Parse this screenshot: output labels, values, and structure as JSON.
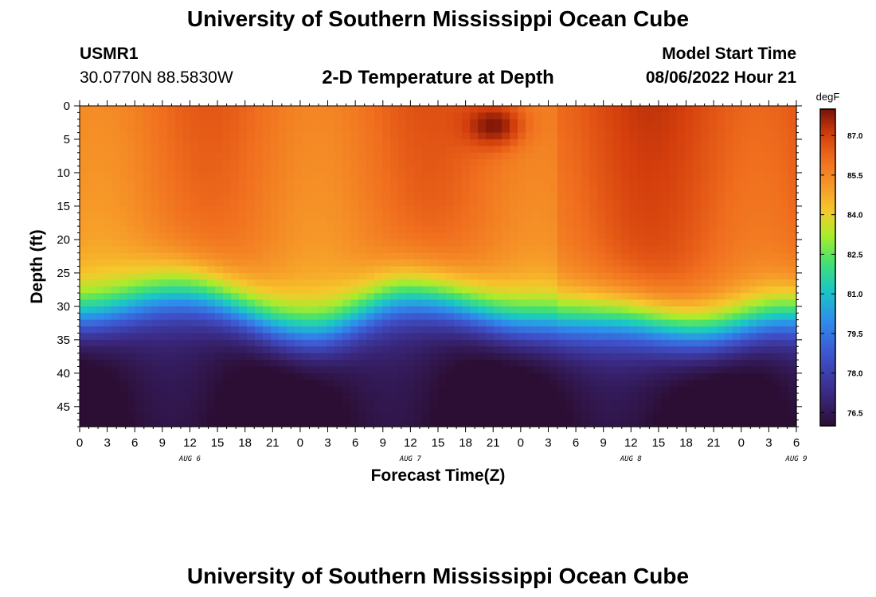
{
  "header": {
    "title": "University of Southern Mississippi Ocean Cube",
    "station_id": "USMR1",
    "station_coords": "30.0770N  88.5830W",
    "plot_title": "2-D Temperature at Depth",
    "model_label": "Model Start Time",
    "model_start": "08/06/2022 Hour 21"
  },
  "footer": {
    "title": "University of Southern Mississippi Ocean Cube"
  },
  "chart_data": {
    "type": "heatmap",
    "title": "2-D Temperature at Depth",
    "xlabel": "Forecast Time(Z)",
    "ylabel": "Depth (ft)",
    "x_tick_labels": [
      "0",
      "3",
      "6",
      "9",
      "12",
      "15",
      "18",
      "21",
      "0",
      "3",
      "6",
      "9",
      "12",
      "15",
      "18",
      "21",
      "0",
      "3",
      "6",
      "9",
      "12",
      "15",
      "18",
      "21",
      "0",
      "3",
      "6"
    ],
    "date_labels": [
      {
        "label": "AUG 6",
        "hour": 12
      },
      {
        "label": "AUG 7",
        "hour": 36
      },
      {
        "label": "AUG 8",
        "hour": 60
      },
      {
        "label": "AUG 9",
        "hour": 78
      }
    ],
    "x_range_hours": [
      0,
      78
    ],
    "y_tick_labels": [
      "0",
      "5",
      "10",
      "15",
      "20",
      "25",
      "30",
      "35",
      "40",
      "45"
    ],
    "y_range_ft": [
      0,
      48
    ],
    "colorbar": {
      "unit": "degF",
      "range": [
        76.0,
        88.0
      ],
      "tick_labels": [
        "87.0",
        "85.5",
        "84.0",
        "82.5",
        "81.0",
        "79.5",
        "78.0",
        "76.5"
      ],
      "tick_values": [
        87.0,
        85.5,
        84.0,
        82.5,
        81.0,
        79.5,
        78.0,
        76.5
      ]
    },
    "thermocline_depth_ft": [
      {
        "hour": 0,
        "depth": 28.5
      },
      {
        "hour": 11,
        "depth": 25.0
      },
      {
        "hour": 25,
        "depth": 31.0
      },
      {
        "hour": 36,
        "depth": 25.5
      },
      {
        "hour": 49,
        "depth": 29.5
      },
      {
        "hour": 58,
        "depth": 29.0
      },
      {
        "hour": 68,
        "depth": 31.0
      },
      {
        "hour": 78,
        "depth": 28.5
      }
    ],
    "warm_spot": {
      "hour": 45,
      "depth": 3,
      "value": 88.0
    }
  }
}
